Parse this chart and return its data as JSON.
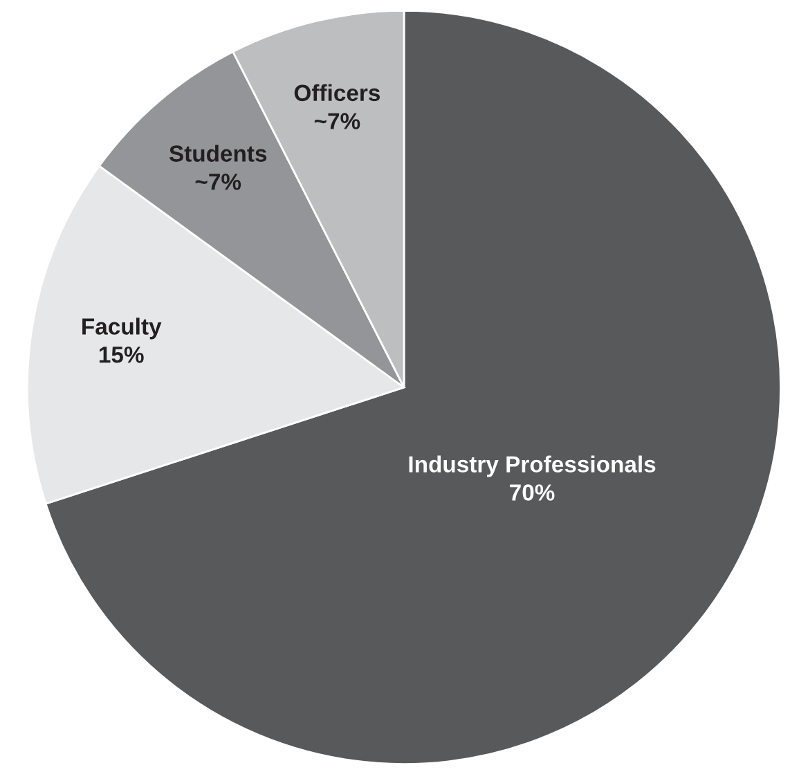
{
  "chart_data": {
    "type": "pie",
    "categories": [
      "Industry Professionals",
      "Faculty",
      "Students",
      "Officers"
    ],
    "values": [
      70,
      15,
      7.5,
      7.5
    ],
    "value_labels": [
      "70%",
      "15%",
      "~7%",
      "~7%"
    ],
    "colors": [
      "#58595b",
      "#e6e7e8",
      "#939598",
      "#bcbec0"
    ],
    "legend": false
  }
}
